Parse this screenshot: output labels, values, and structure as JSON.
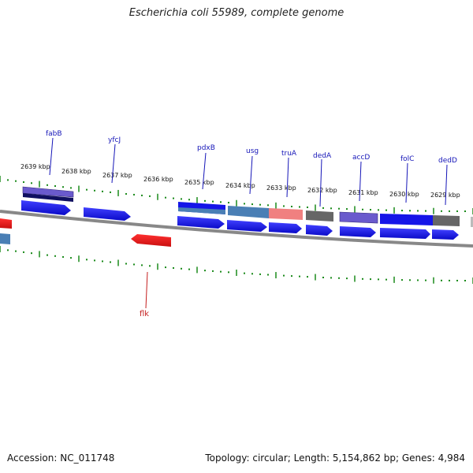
{
  "title": "Escherichia coli 55989, complete genome",
  "accession_text": "Accession: NC_011748",
  "summary_text": "Topology: circular; Length: 5,154,862 bp; Genes: 4,984",
  "kbp_labels": [
    "2639 kbp",
    "2638 kbp",
    "2637 kbp",
    "2636 kbp",
    "2635 kbp",
    "2634 kbp",
    "2633 kbp",
    "2632 kbp",
    "2631 kbp",
    "2630 kbp",
    "2629 kbp"
  ],
  "gene_labels": {
    "fabB": "fabB",
    "yfcJ": "yfcJ",
    "pdxB": "pdxB",
    "usg": "usg",
    "truA": "truA",
    "dedA": "dedA",
    "accD": "accD",
    "folC": "folC",
    "dedD": "dedD",
    "flk": "flk"
  },
  "colors": {
    "gene_blue": "#1515e8",
    "steel_blue": "#4a7fb5",
    "purple": "#6a5acd",
    "salmon": "#f08080",
    "gray": "#666666",
    "red": "#e61a1a",
    "tick_green": "#1a8a1a",
    "backbone": "#888888"
  }
}
